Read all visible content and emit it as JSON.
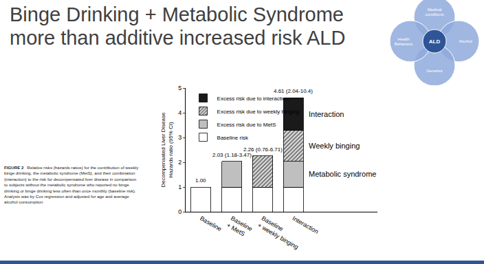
{
  "chart_data": {
    "type": "bar",
    "stacked": true,
    "title": "Binge Drinking + Metabolic Syndrome\nmore than additive increased risk ALD",
    "y_label": "Decompensated Liver Disease\nHazards ratio (95% CI)",
    "categories": [
      "Baseline",
      "Baseline\n+ MetS",
      "Baseline\n+ weekly binging",
      "Interaction"
    ],
    "series": [
      {
        "name": "Baseline risk",
        "color": "#ffffff",
        "values": [
          1,
          1,
          1,
          1
        ]
      },
      {
        "name": "Excess risk due to MetS",
        "color": "#bfbfbf",
        "values": [
          null,
          1.03,
          null,
          1.03
        ]
      },
      {
        "name": "Excess risk due to weekly binging",
        "color": "#d9d9d9",
        "marker": "hatched",
        "values": [
          null,
          null,
          1.26,
          1.26
        ]
      },
      {
        "name": "Excess risk due to interaction",
        "color": "#1a1a1a",
        "values": [
          null,
          null,
          null,
          1.32
        ]
      }
    ],
    "annotations": [
      {
        "text": "1.00",
        "category": "Baseline"
      },
      {
        "text": "2.03 (1.18-3.47)",
        "category": "Baseline\n+ MetS"
      },
      {
        "text": "2.26 (0.76-6.71)",
        "category": "Baseline\n+ weekly binging"
      },
      {
        "text": "4.61 (2.04-10.4)",
        "category": "Interaction"
      },
      {
        "text": "Interaction",
        "series": "Excess risk due to interaction"
      },
      {
        "text": "Weekly binging",
        "series": "Excess risk due to weekly binging"
      },
      {
        "text": "Metabolic syndrome",
        "series": "Excess risk due to MetS"
      }
    ],
    "ylim": [
      0,
      5
    ],
    "yticks": [
      0,
      1,
      2,
      3,
      4,
      5
    ],
    "grid": false,
    "legend": "upper left"
  },
  "diagram": {
    "center": "ALD",
    "nodes": [
      "Medical\nconditions",
      "Alcohol",
      "Genetics",
      "Health\nBehaviors"
    ]
  },
  "caption": {
    "label": "FIGURE 2",
    "text": "Relative risks (hazards ratios) for the contribution of weekly binge drinking, the metabolic syndrome (MetS), and their combination (interaction) to the risk for decompensated liver disease in comparison to subjects without the metabolic syndrome who reported no binge drinking or binge drinking less often than once monthly (baseline risk). Analysis was by Cox regression and adjusted for age and average alcohol consumption"
  }
}
